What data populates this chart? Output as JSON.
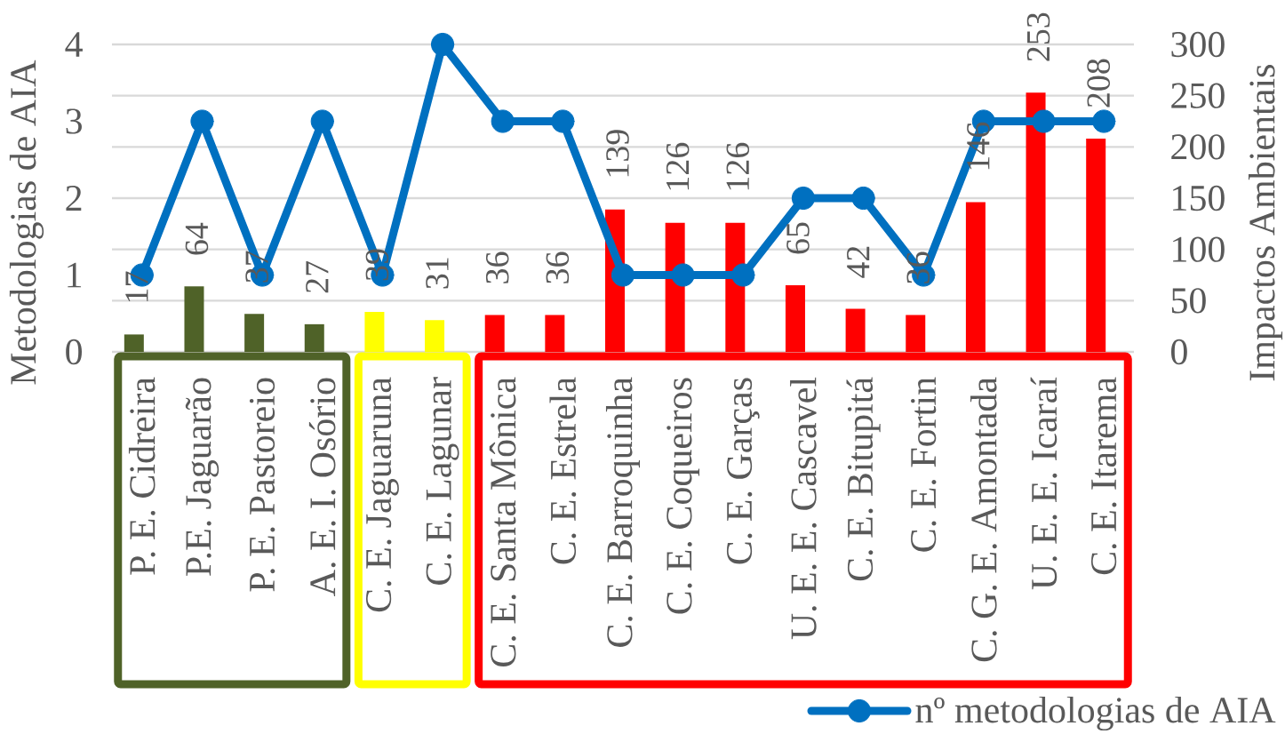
{
  "chart_data": {
    "type": "bar",
    "categories": [
      "P. E. Cidreira",
      "P.E. Jaguarão",
      "P. E. Pastoreio",
      "A. E. I. Osório",
      "C. E. Jaguaruna",
      "C. E. Lagunar",
      "C. E. Santa Mônica",
      "C. E. Estrela",
      "C. E. Barroquinha",
      "C. E. Coqueiros",
      "C. E. Garças",
      "U. E. E. Cascavel",
      "C. E. Bitupitá",
      "C. E. Fortin",
      "C. G. E. Amontada",
      "U. E. E. Icaraí",
      "C. E. Itarema"
    ],
    "ylabel": "Metodologias de AIA",
    "y2label": "Impactos Ambientais",
    "ylim": [
      0,
      4
    ],
    "yticks": [
      0,
      1,
      2,
      3,
      4
    ],
    "y2lim": [
      0,
      300
    ],
    "y2ticks": [
      0,
      50,
      100,
      150,
      200,
      250,
      300
    ],
    "grid": "y2",
    "legend": "bottom right",
    "series": [
      {
        "axis": "y2",
        "data_labels": true,
        "colors": [
          "#4f6228",
          "#4f6228",
          "#4f6228",
          "#4f6228",
          "#ffff00",
          "#ffff00",
          "#ff0000",
          "#ff0000",
          "#ff0000",
          "#ff0000",
          "#ff0000",
          "#ff0000",
          "#ff0000",
          "#ff0000",
          "#ff0000",
          "#ff0000",
          "#ff0000"
        ],
        "values": [
          17,
          64,
          37,
          27,
          39,
          31,
          36,
          36,
          139,
          126,
          126,
          65,
          42,
          36,
          146,
          253,
          208
        ]
      },
      {
        "name": "nº metodologias de AIA",
        "type": "line",
        "color": "#0070c0",
        "marker": "circle",
        "values": [
          1,
          3,
          1,
          3,
          1,
          4,
          3,
          3,
          1,
          1,
          1,
          2,
          2,
          1,
          3,
          3,
          3
        ]
      }
    ]
  }
}
